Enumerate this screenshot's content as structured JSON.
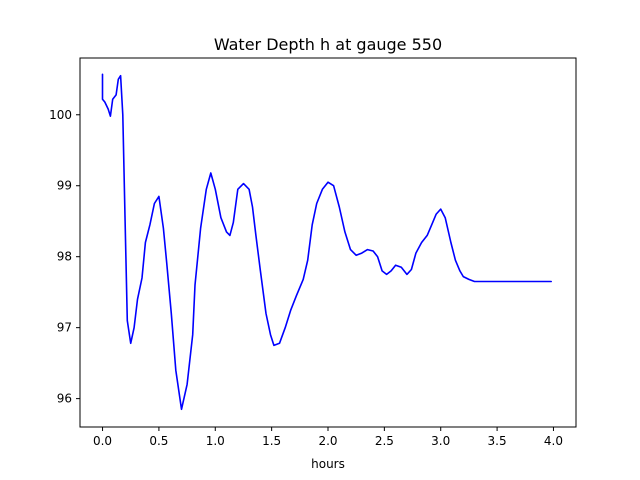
{
  "chart_data": {
    "type": "line",
    "title": "Water Depth h at gauge 550",
    "xlabel": "hours",
    "ylabel": "",
    "xlim": [
      -0.2,
      4.2
    ],
    "ylim": [
      95.6,
      100.8
    ],
    "xticks": [
      0.0,
      0.5,
      1.0,
      1.5,
      2.0,
      2.5,
      3.0,
      3.5,
      4.0
    ],
    "xtick_labels": [
      "0.0",
      "0.5",
      "1.0",
      "1.5",
      "2.0",
      "2.5",
      "3.0",
      "3.5",
      "4.0"
    ],
    "yticks": [
      96,
      97,
      98,
      99,
      100
    ],
    "ytick_labels": [
      "96",
      "97",
      "98",
      "99",
      "100"
    ],
    "grid": false,
    "series": [
      {
        "color": "#0000ff",
        "x": [
          0.0,
          0.0,
          0.02,
          0.05,
          0.07,
          0.09,
          0.12,
          0.14,
          0.16,
          0.18,
          0.2,
          0.22,
          0.25,
          0.28,
          0.31,
          0.35,
          0.38,
          0.42,
          0.46,
          0.5,
          0.54,
          0.57,
          0.61,
          0.65,
          0.7,
          0.75,
          0.8,
          0.82,
          0.87,
          0.92,
          0.96,
          1.0,
          1.05,
          1.1,
          1.13,
          1.16,
          1.2,
          1.25,
          1.3,
          1.33,
          1.36,
          1.4,
          1.45,
          1.49,
          1.52,
          1.57,
          1.62,
          1.67,
          1.72,
          1.78,
          1.82,
          1.86,
          1.9,
          1.95,
          2.0,
          2.05,
          2.1,
          2.15,
          2.2,
          2.25,
          2.3,
          2.35,
          2.4,
          2.44,
          2.48,
          2.52,
          2.56,
          2.6,
          2.65,
          2.7,
          2.74,
          2.78,
          2.83,
          2.88,
          2.92,
          2.96,
          3.0,
          3.04,
          3.09,
          3.13,
          3.17,
          3.2,
          3.25,
          3.3,
          3.35,
          3.4,
          3.45,
          3.5,
          3.55,
          3.6,
          3.64,
          3.68,
          3.72,
          3.76,
          3.8,
          3.85,
          3.9,
          3.95,
          3.98
        ],
        "y": [
          100.57,
          100.22,
          100.18,
          100.08,
          99.98,
          100.22,
          100.28,
          100.5,
          100.55,
          100.0,
          98.5,
          97.1,
          96.78,
          97.0,
          97.4,
          97.7,
          98.2,
          98.45,
          98.75,
          98.85,
          98.4,
          97.9,
          97.2,
          96.4,
          95.85,
          96.2,
          96.9,
          97.6,
          98.4,
          98.95,
          99.18,
          98.95,
          98.55,
          98.35,
          98.3,
          98.48,
          98.95,
          99.03,
          98.95,
          98.7,
          98.3,
          97.8,
          97.2,
          96.9,
          96.75,
          96.78,
          97.0,
          97.25,
          97.45,
          97.68,
          97.95,
          98.45,
          98.75,
          98.95,
          99.05,
          99.0,
          98.7,
          98.35,
          98.1,
          98.02,
          98.05,
          98.1,
          98.08,
          98.0,
          97.8,
          97.75,
          97.8,
          97.88,
          97.85,
          97.75,
          97.82,
          98.05,
          98.2,
          98.3,
          98.45,
          98.6,
          98.67,
          98.55,
          98.2,
          97.95,
          97.8,
          97.72,
          97.68,
          97.65,
          97.65,
          97.65,
          97.65,
          97.65,
          97.65,
          97.65,
          97.65,
          97.65,
          97.65,
          97.65,
          97.65,
          97.65,
          97.65,
          97.65,
          97.65
        ]
      }
    ]
  }
}
